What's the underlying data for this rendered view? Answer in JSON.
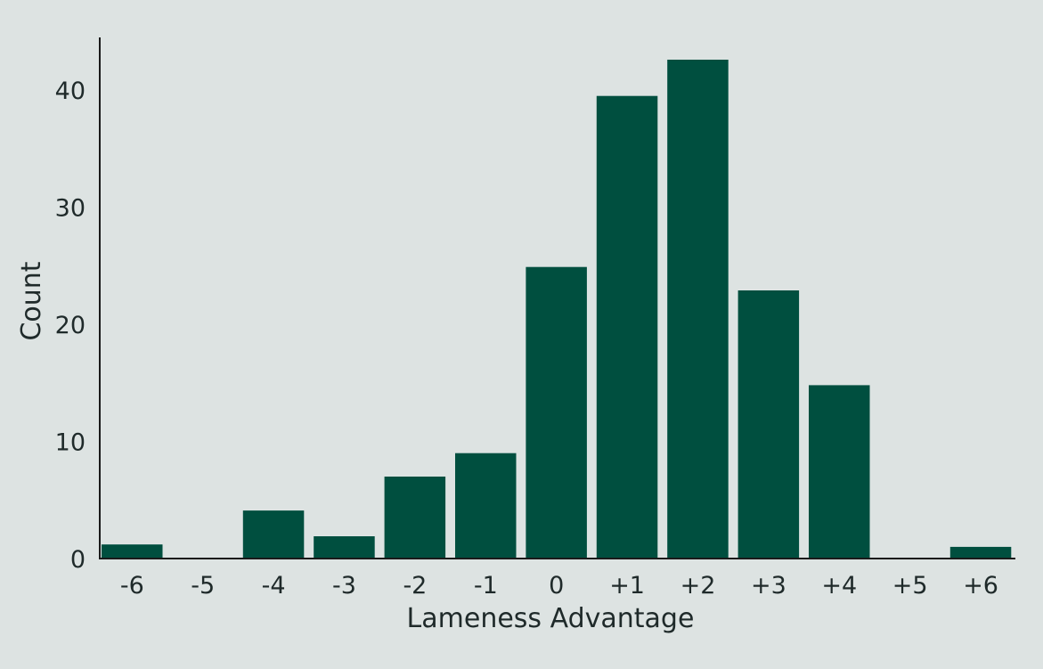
{
  "chart_data": {
    "type": "bar",
    "categories": [
      "-6",
      "-5",
      "-4",
      "-3",
      "-2",
      "-1",
      "0",
      "+1",
      "+2",
      "+3",
      "+4",
      "+5",
      "+6"
    ],
    "values": [
      1.2,
      0,
      4.1,
      1.9,
      7,
      9,
      24.9,
      39.5,
      42.6,
      22.9,
      14.8,
      0,
      1
    ]
  },
  "x_axis": {
    "title": "Lameness Advantage"
  },
  "y_axis": {
    "title": "Count",
    "ticks": [
      0,
      10,
      20,
      30,
      40
    ],
    "min": 0,
    "max": 44.5
  },
  "colors": {
    "bar": "#004f3f",
    "axis": "#1a1a1a",
    "background": "#dde3e2"
  }
}
